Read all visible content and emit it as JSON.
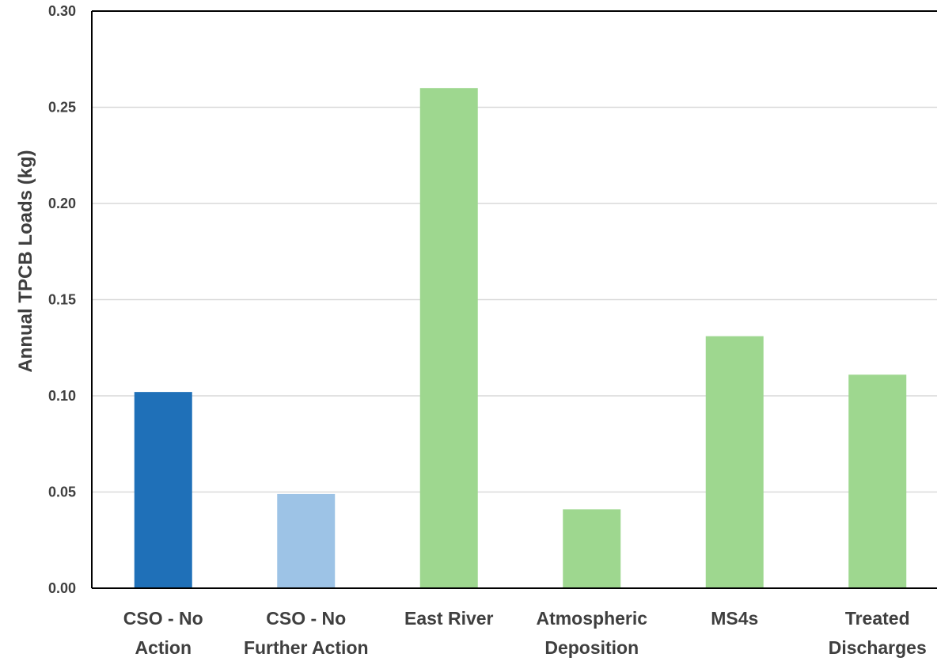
{
  "chart_data": {
    "type": "bar",
    "title": "",
    "xlabel": "",
    "ylabel": "Annual  TPCB Loads (kg)",
    "ylim": [
      0,
      0.3
    ],
    "yticks": [
      "0.00",
      "0.05",
      "0.10",
      "0.15",
      "0.20",
      "0.25",
      "0.30"
    ],
    "grid": true,
    "legend": "none",
    "categories": [
      [
        "CSO - No",
        "Action"
      ],
      [
        "CSO - No",
        "Further Action"
      ],
      [
        "East River"
      ],
      [
        "Atmospheric",
        "Deposition"
      ],
      [
        "MS4s"
      ],
      [
        "Treated",
        "Discharges"
      ]
    ],
    "values": [
      0.102,
      0.049,
      0.26,
      0.041,
      0.131,
      0.111
    ],
    "colors": [
      "#1f70b8",
      "#9dc3e6",
      "#9ed78f",
      "#9ed78f",
      "#9ed78f",
      "#9ed78f"
    ],
    "gridColor": "#d9d9d9",
    "axisColor": "#000000"
  }
}
